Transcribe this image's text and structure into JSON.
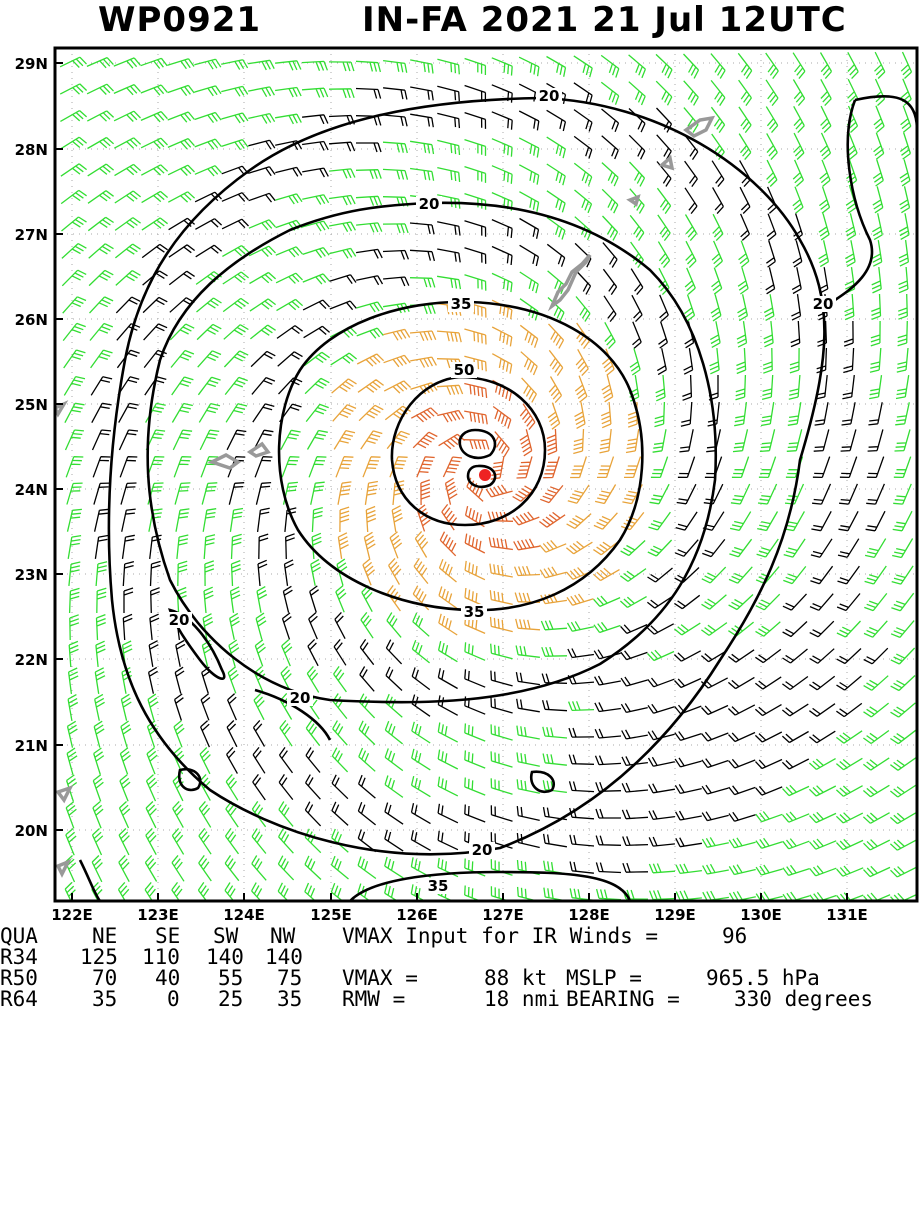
{
  "header": {
    "storm_id": "WP0921",
    "storm_info": "IN-FA 2021 21 Jul 12UTC"
  },
  "map": {
    "lat_labels": [
      "29N",
      "28N",
      "27N",
      "26N",
      "25N",
      "24N",
      "23N",
      "22N",
      "21N",
      "20N"
    ],
    "lon_labels": [
      "122E",
      "123E",
      "124E",
      "125E",
      "126E",
      "127E",
      "128E",
      "129E",
      "130E",
      "131E"
    ],
    "contour_labels": [
      "20",
      "20",
      "20",
      "20",
      "20",
      "20",
      "35",
      "50",
      "35",
      "35"
    ],
    "center_marker": "storm-center"
  },
  "colors": {
    "weak": "#33dd33",
    "moderate": "#e8a33a",
    "strong": "#e0652e",
    "calm": "#000000",
    "center": "#ee2222",
    "land": "#999999"
  },
  "table": {
    "quadrant_header": [
      "QUA",
      "NE",
      "SE",
      "SW",
      "NW"
    ],
    "rows": [
      {
        "label": "R34",
        "values": [
          "125",
          "110",
          "140",
          "140"
        ]
      },
      {
        "label": "R50",
        "values": [
          "70",
          "40",
          "55",
          "75"
        ]
      },
      {
        "label": "R64",
        "values": [
          "35",
          "0",
          "25",
          "35"
        ]
      }
    ],
    "vmax_ir_text": "VMAX Input for IR Winds =",
    "vmax_ir_value": "96",
    "vmax_text": "VMAX =",
    "vmax_value": "88 kt",
    "mslp_text": "MSLP =",
    "mslp_value": "965.5 hPa",
    "rmw_text": "RMW =",
    "rmw_value": "18 nmi",
    "bearing_text": "BEARING =",
    "bearing_value": "330 degrees"
  }
}
